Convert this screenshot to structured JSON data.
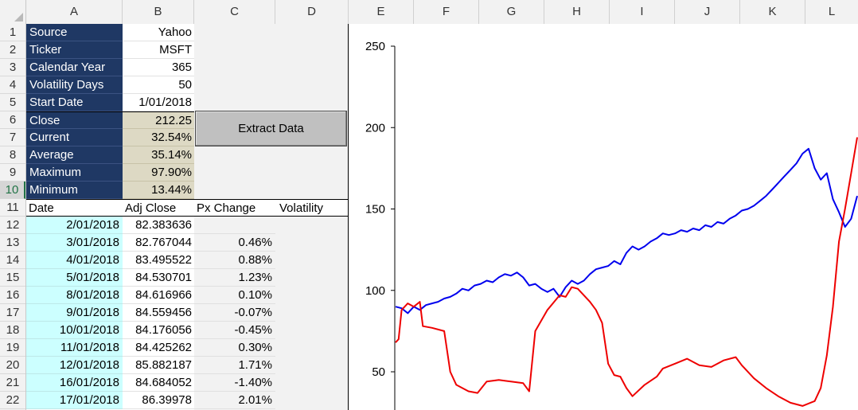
{
  "columns": [
    "A",
    "B",
    "C",
    "D",
    "E",
    "F",
    "G",
    "H",
    "I",
    "J",
    "K",
    "L"
  ],
  "rows": [
    "1",
    "2",
    "3",
    "4",
    "5",
    "6",
    "7",
    "8",
    "9",
    "10",
    "11",
    "12",
    "13",
    "14",
    "15",
    "16",
    "17",
    "18",
    "19",
    "20",
    "21",
    "22"
  ],
  "params": [
    {
      "label": "Source",
      "value": "Yahoo"
    },
    {
      "label": "Ticker",
      "value": "MSFT"
    },
    {
      "label": "Calendar Year",
      "value": "365"
    },
    {
      "label": "Volatility Days",
      "value": "50"
    },
    {
      "label": "Start Date",
      "value": "1/01/2018"
    }
  ],
  "stats": [
    {
      "label": "Close",
      "value": "212.25"
    },
    {
      "label": "Current",
      "value": "32.54%"
    },
    {
      "label": "Average",
      "value": "35.14%"
    },
    {
      "label": "Maximum",
      "value": "97.90%"
    },
    {
      "label": "Minimum",
      "value": "13.44%"
    }
  ],
  "button_label": "Extract Data",
  "table_headers": [
    "Date",
    "Adj Close",
    "Px Change",
    "Volatility"
  ],
  "table_rows": [
    {
      "date": "2/01/2018",
      "adj_close": "82.383636",
      "px_change": ""
    },
    {
      "date": "3/01/2018",
      "adj_close": "82.767044",
      "px_change": "0.46%"
    },
    {
      "date": "4/01/2018",
      "adj_close": "83.495522",
      "px_change": "0.88%"
    },
    {
      "date": "5/01/2018",
      "adj_close": "84.530701",
      "px_change": "1.23%"
    },
    {
      "date": "8/01/2018",
      "adj_close": "84.616966",
      "px_change": "0.10%"
    },
    {
      "date": "9/01/2018",
      "adj_close": "84.559456",
      "px_change": "-0.07%"
    },
    {
      "date": "10/01/2018",
      "adj_close": "84.176056",
      "px_change": "-0.45%"
    },
    {
      "date": "11/01/2018",
      "adj_close": "84.425262",
      "px_change": "0.30%"
    },
    {
      "date": "12/01/2018",
      "adj_close": "85.882187",
      "px_change": "1.71%"
    },
    {
      "date": "16/01/2018",
      "adj_close": "84.684052",
      "px_change": "-1.40%"
    },
    {
      "date": "17/01/2018",
      "adj_close": "86.39978",
      "px_change": "2.01%"
    }
  ],
  "colors": {
    "navy": "#1f3864",
    "tan": "#ddd9c4",
    "cyan": "#ccffff",
    "series_blue": "#0000ee",
    "series_red": "#ee0000"
  },
  "chart_data": {
    "type": "line",
    "ylim": [
      25,
      250
    ],
    "yticks": [
      "250",
      "200",
      "150",
      "100",
      "50"
    ],
    "series": [
      {
        "color": "#0000ee",
        "points": [
          [
            0,
            90
          ],
          [
            2,
            89
          ],
          [
            4,
            86
          ],
          [
            6,
            90
          ],
          [
            8,
            88
          ],
          [
            10,
            91
          ],
          [
            12,
            92
          ],
          [
            14,
            93
          ],
          [
            16,
            95
          ],
          [
            18,
            96
          ],
          [
            20,
            98
          ],
          [
            22,
            101
          ],
          [
            24,
            100
          ],
          [
            26,
            103
          ],
          [
            28,
            104
          ],
          [
            30,
            106
          ],
          [
            32,
            105
          ],
          [
            34,
            108
          ],
          [
            36,
            110
          ],
          [
            38,
            109
          ],
          [
            40,
            111
          ],
          [
            42,
            108
          ],
          [
            44,
            103
          ],
          [
            46,
            104
          ],
          [
            48,
            101
          ],
          [
            50,
            99
          ],
          [
            52,
            101
          ],
          [
            54,
            96
          ],
          [
            56,
            102
          ],
          [
            58,
            106
          ],
          [
            60,
            104
          ],
          [
            62,
            106
          ],
          [
            64,
            110
          ],
          [
            66,
            113
          ],
          [
            68,
            114
          ],
          [
            70,
            115
          ],
          [
            72,
            118
          ],
          [
            74,
            116
          ],
          [
            76,
            123
          ],
          [
            78,
            127
          ],
          [
            80,
            125
          ],
          [
            82,
            127
          ],
          [
            84,
            130
          ],
          [
            86,
            132
          ],
          [
            88,
            135
          ],
          [
            90,
            134
          ],
          [
            92,
            135
          ],
          [
            94,
            137
          ],
          [
            96,
            136
          ],
          [
            98,
            138
          ],
          [
            100,
            137
          ],
          [
            102,
            140
          ],
          [
            104,
            139
          ],
          [
            106,
            142
          ],
          [
            108,
            141
          ],
          [
            110,
            144
          ],
          [
            112,
            146
          ],
          [
            114,
            149
          ],
          [
            116,
            150
          ],
          [
            118,
            152
          ],
          [
            120,
            155
          ],
          [
            122,
            158
          ],
          [
            124,
            162
          ],
          [
            126,
            166
          ],
          [
            128,
            170
          ],
          [
            130,
            174
          ],
          [
            132,
            178
          ],
          [
            134,
            184
          ],
          [
            136,
            187
          ],
          [
            138,
            175
          ],
          [
            140,
            168
          ],
          [
            142,
            172
          ],
          [
            144,
            156
          ],
          [
            146,
            148
          ],
          [
            148,
            139
          ],
          [
            150,
            144
          ],
          [
            152,
            158
          ]
        ]
      },
      {
        "color": "#ee0000",
        "points": [
          [
            0,
            68
          ],
          [
            1,
            70
          ],
          [
            2,
            88
          ],
          [
            4,
            92
          ],
          [
            6,
            90
          ],
          [
            8,
            93
          ],
          [
            9,
            78
          ],
          [
            12,
            77
          ],
          [
            16,
            75
          ],
          [
            18,
            50
          ],
          [
            20,
            42
          ],
          [
            24,
            38
          ],
          [
            27,
            37
          ],
          [
            30,
            44
          ],
          [
            34,
            45
          ],
          [
            38,
            44
          ],
          [
            42,
            43
          ],
          [
            44,
            38
          ],
          [
            46,
            75
          ],
          [
            50,
            88
          ],
          [
            54,
            97
          ],
          [
            56,
            96
          ],
          [
            58,
            102
          ],
          [
            60,
            101
          ],
          [
            62,
            97
          ],
          [
            64,
            93
          ],
          [
            66,
            88
          ],
          [
            68,
            80
          ],
          [
            70,
            55
          ],
          [
            72,
            48
          ],
          [
            74,
            47
          ],
          [
            76,
            40
          ],
          [
            78,
            35
          ],
          [
            82,
            42
          ],
          [
            86,
            47
          ],
          [
            88,
            52
          ],
          [
            92,
            55
          ],
          [
            96,
            58
          ],
          [
            100,
            54
          ],
          [
            104,
            53
          ],
          [
            108,
            57
          ],
          [
            112,
            59
          ],
          [
            114,
            54
          ],
          [
            118,
            46
          ],
          [
            122,
            40
          ],
          [
            126,
            35
          ],
          [
            130,
            31
          ],
          [
            134,
            29
          ],
          [
            138,
            32
          ],
          [
            140,
            40
          ],
          [
            142,
            60
          ],
          [
            144,
            90
          ],
          [
            146,
            130
          ],
          [
            148,
            150
          ],
          [
            150,
            172
          ],
          [
            152,
            194
          ]
        ]
      }
    ]
  }
}
